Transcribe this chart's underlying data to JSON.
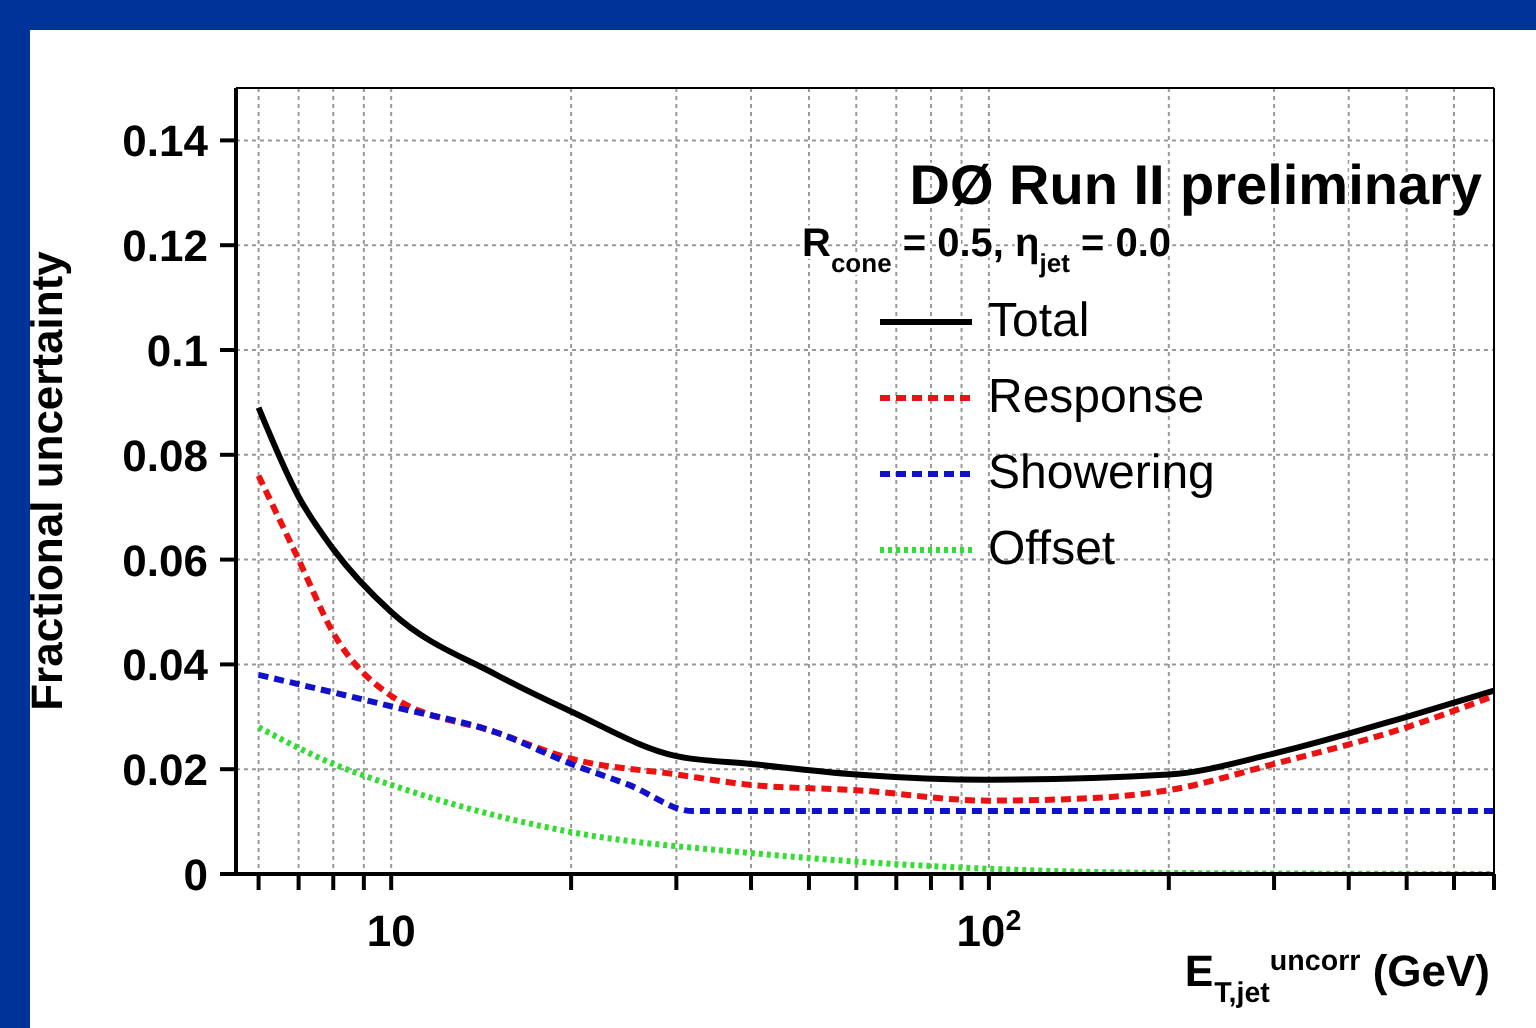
{
  "chart_data": {
    "type": "line",
    "ylabel": "Fractional uncertainty",
    "xlabel": "E$_{T,jet}$$^{uncorr}$ (GeV)",
    "annotations": [
      "DØ Run II preliminary",
      "R$_{cone}$ = 0.5,  η$_{jet}$ = 0.0"
    ],
    "log": "x",
    "xlim": [
      5.5,
      700
    ],
    "xticks": [
      {
        "value": 6,
        "label": null
      },
      {
        "value": 7,
        "label": null
      },
      {
        "value": 8,
        "label": null
      },
      {
        "value": 9,
        "label": null
      },
      10,
      {
        "value": 20,
        "label": null
      },
      {
        "value": 30,
        "label": null
      },
      {
        "value": 40,
        "label": null
      },
      {
        "value": 50,
        "label": null
      },
      {
        "value": 60,
        "label": null
      },
      {
        "value": 70,
        "label": null
      },
      {
        "value": 80,
        "label": null
      },
      {
        "value": 90,
        "label": null
      },
      {
        "value": 100,
        "label": "10$^{2}$"
      },
      {
        "value": 200,
        "label": null
      },
      {
        "value": 300,
        "label": null
      },
      {
        "value": 400,
        "label": null
      },
      {
        "value": 500,
        "label": null
      },
      {
        "value": 600,
        "label": null
      },
      {
        "value": 700,
        "label": null
      }
    ],
    "ylim": [
      0,
      0.15
    ],
    "yticks": [
      0,
      0.02,
      0.04,
      0.06,
      0.08,
      0.1,
      0.12,
      0.14
    ],
    "grid": true,
    "legend": "top right",
    "marker": "none",
    "series": [
      {
        "name": "Total",
        "color": "#000000",
        "line_style": "solid",
        "x": [
          6,
          7,
          8,
          10,
          15,
          20,
          30,
          40,
          60,
          100,
          200,
          300,
          500,
          700
        ],
        "values": [
          0.089,
          0.072,
          0.062,
          0.05,
          0.038,
          0.031,
          0.0225,
          0.021,
          0.019,
          0.018,
          0.019,
          0.023,
          0.03,
          0.035
        ]
      },
      {
        "name": "Response",
        "color": "#ee1111",
        "line_style": "dashed",
        "x": [
          6,
          7,
          8,
          10,
          15,
          20,
          30,
          40,
          60,
          100,
          150,
          200,
          300,
          500,
          700
        ],
        "values": [
          0.076,
          0.06,
          0.046,
          0.034,
          0.027,
          0.022,
          0.019,
          0.017,
          0.016,
          0.014,
          0.0145,
          0.016,
          0.021,
          0.028,
          0.034
        ]
      },
      {
        "name": "Showering",
        "color": "#1111cc",
        "line_style": "dashed",
        "x": [
          6,
          10,
          15,
          20,
          25,
          32,
          100,
          700
        ],
        "values": [
          0.038,
          0.032,
          0.027,
          0.021,
          0.017,
          0.012,
          0.012,
          0.012
        ]
      },
      {
        "name": "Offset",
        "color": "#33dd33",
        "line_style": "dotted",
        "x": [
          6,
          8,
          10,
          20,
          40,
          100,
          200,
          700
        ],
        "values": [
          0.028,
          0.021,
          0.017,
          0.008,
          0.004,
          0.001,
          0.0002,
          0
        ]
      }
    ]
  }
}
